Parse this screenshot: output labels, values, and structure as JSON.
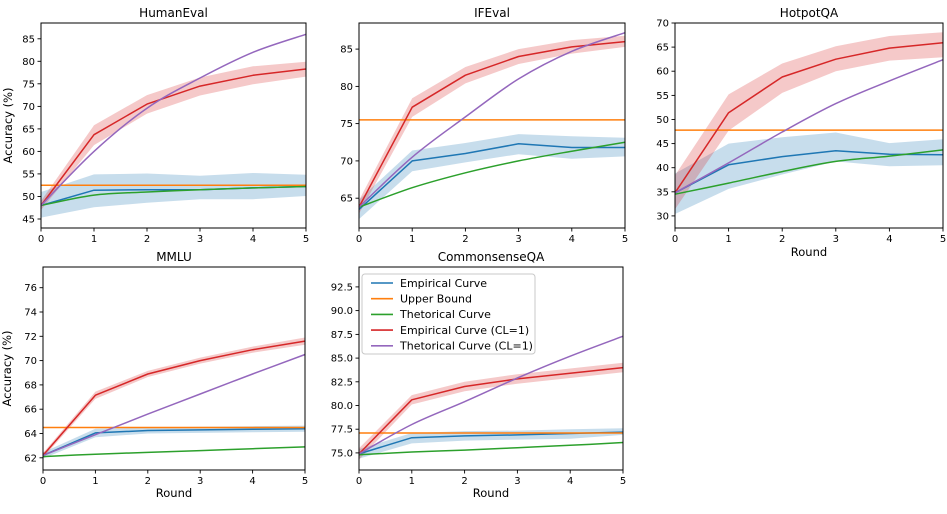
{
  "figure": {
    "background": "#ffffff",
    "palette": {
      "blue": "#1f77b4",
      "orange": "#ff7f0e",
      "green": "#2ca02c",
      "red": "#d62728",
      "purple": "#9467bd",
      "spine": "#000000",
      "legend_edge": "#c8c8c8"
    },
    "band_alpha": 0.25,
    "axis_labels": {
      "y": "Accuracy (%)",
      "x": "Round"
    }
  },
  "chart_data": [
    {
      "type": "line",
      "title": "HumanEval",
      "ylabel": "Accuracy (%)",
      "x": [
        0,
        1,
        2,
        3,
        4,
        5
      ],
      "xlim": [
        0,
        5
      ],
      "ylim": [
        43,
        88.5
      ],
      "xticks": [
        0,
        1,
        2,
        3,
        4,
        5
      ],
      "yticks": [
        45,
        50,
        55,
        60,
        65,
        70,
        75,
        80,
        85
      ],
      "ytick_decimals": 0,
      "legend": false,
      "series": [
        {
          "name": "Empirical Curve",
          "color": "blue",
          "smooth": false,
          "values": [
            48,
            51.4,
            51.5,
            51.5,
            51.9,
            52.2
          ],
          "band_lower": [
            45.3,
            47.6,
            48.6,
            49.4,
            49.4,
            50.1
          ],
          "band_upper": [
            51,
            54.9,
            55.1,
            54.6,
            55.2,
            54.8
          ]
        },
        {
          "name": "Upper Bound",
          "color": "orange",
          "constant": 52.5
        },
        {
          "name": "Thetorical Curve",
          "color": "green",
          "smooth": true,
          "values": [
            48,
            50.3,
            51,
            51.5,
            51.9,
            52.2
          ]
        },
        {
          "name": "Empirical Curve (CL=1)",
          "color": "red",
          "smooth": false,
          "values": [
            48,
            63.7,
            70.5,
            74.5,
            76.9,
            78.3
          ],
          "band_lower": [
            47,
            61.4,
            68.4,
            72.4,
            74.9,
            76.6
          ],
          "band_upper": [
            49,
            65.8,
            72.5,
            76.4,
            78.9,
            79.9
          ]
        },
        {
          "name": "Thetorical Curve (CL=1)",
          "color": "purple",
          "smooth": true,
          "values": [
            48,
            60,
            69.6,
            76.3,
            82,
            86
          ]
        }
      ]
    },
    {
      "type": "line",
      "title": "IFEval",
      "x": [
        0,
        1,
        2,
        3,
        4,
        5
      ],
      "xlim": [
        0,
        5
      ],
      "ylim": [
        61,
        88.5
      ],
      "xticks": [
        0,
        1,
        2,
        3,
        4,
        5
      ],
      "yticks": [
        65,
        70,
        75,
        80,
        85
      ],
      "ytick_decimals": 0,
      "legend": false,
      "series": [
        {
          "name": "Empirical Curve",
          "color": "blue",
          "smooth": false,
          "values": [
            63.5,
            70,
            71,
            72.3,
            71.8,
            71.8
          ],
          "band_lower": [
            62.2,
            68.6,
            69.8,
            70.9,
            70.3,
            70.6
          ],
          "band_upper": [
            64.8,
            71.4,
            72.4,
            73.6,
            73.3,
            73.1
          ]
        },
        {
          "name": "Upper Bound",
          "color": "orange",
          "constant": 75.5
        },
        {
          "name": "Thetorical Curve",
          "color": "green",
          "smooth": true,
          "values": [
            63.8,
            66.4,
            68.4,
            70,
            71.3,
            72.5
          ]
        },
        {
          "name": "Empirical Curve (CL=1)",
          "color": "red",
          "smooth": false,
          "values": [
            63.8,
            77.2,
            81.5,
            84,
            85.3,
            86
          ],
          "band_lower": [
            62.9,
            75.9,
            80.4,
            83,
            84.4,
            85.3
          ],
          "band_upper": [
            64.7,
            78.4,
            82.6,
            85,
            86.2,
            86.8
          ]
        },
        {
          "name": "Thetorical Curve (CL=1)",
          "color": "purple",
          "smooth": true,
          "values": [
            63.8,
            70.5,
            75.9,
            81,
            84.7,
            87.2
          ]
        }
      ]
    },
    {
      "type": "line",
      "title": "HotpotQA",
      "xlabel": "Round",
      "x": [
        0,
        1,
        2,
        3,
        4,
        5
      ],
      "xlim": [
        0,
        5
      ],
      "ylim": [
        27.5,
        70
      ],
      "xticks": [
        0,
        1,
        2,
        3,
        4,
        5
      ],
      "yticks": [
        30,
        35,
        40,
        45,
        50,
        55,
        60,
        65,
        70
      ],
      "ytick_decimals": 0,
      "legend": false,
      "series": [
        {
          "name": "Empirical Curve",
          "color": "blue",
          "smooth": false,
          "values": [
            34.8,
            40.6,
            42.3,
            43.5,
            42.8,
            42.7
          ],
          "band_lower": [
            30.4,
            35.6,
            38.6,
            41.3,
            40.3,
            40.5
          ],
          "band_upper": [
            38.8,
            45,
            46.3,
            47.3,
            45.1,
            45.9
          ]
        },
        {
          "name": "Upper Bound",
          "color": "orange",
          "constant": 47.8
        },
        {
          "name": "Thetorical Curve",
          "color": "green",
          "smooth": true,
          "values": [
            34.5,
            36.8,
            39.2,
            41.3,
            42.4,
            43.7
          ]
        },
        {
          "name": "Empirical Curve (CL=1)",
          "color": "red",
          "smooth": false,
          "values": [
            34.8,
            51.4,
            58.8,
            62.5,
            64.8,
            65.9
          ],
          "band_lower": [
            31.4,
            47.7,
            55.5,
            60,
            62.2,
            62.9
          ],
          "band_upper": [
            38.4,
            55.2,
            61.6,
            65.2,
            67.3,
            68.1
          ]
        },
        {
          "name": "Thetorical Curve (CL=1)",
          "color": "purple",
          "smooth": true,
          "values": [
            34.8,
            41,
            47.4,
            53.3,
            58,
            62.4
          ]
        }
      ]
    },
    {
      "type": "line",
      "title": "MMLU",
      "xlabel": "Round",
      "ylabel": "Accuracy (%)",
      "x": [
        0,
        1,
        2,
        3,
        4,
        5
      ],
      "xlim": [
        0,
        5
      ],
      "ylim": [
        61,
        77.7
      ],
      "xticks": [
        0,
        1,
        2,
        3,
        4,
        5
      ],
      "yticks": [
        62,
        64,
        66,
        68,
        70,
        72,
        74,
        76
      ],
      "ytick_decimals": 0,
      "legend": false,
      "series": [
        {
          "name": "Empirical Curve",
          "color": "blue",
          "smooth": false,
          "values": [
            62.2,
            64.05,
            64.25,
            64.3,
            64.35,
            64.4
          ],
          "band_lower": [
            61.95,
            63.7,
            64,
            64.05,
            64.1,
            64.15
          ],
          "band_upper": [
            62.45,
            64.4,
            64.5,
            64.55,
            64.6,
            64.65
          ]
        },
        {
          "name": "Upper Bound",
          "color": "orange",
          "constant": 64.5
        },
        {
          "name": "Thetorical Curve",
          "color": "green",
          "smooth": true,
          "values": [
            62.1,
            62.3,
            62.45,
            62.6,
            62.75,
            62.9
          ]
        },
        {
          "name": "Empirical Curve (CL=1)",
          "color": "red",
          "smooth": false,
          "values": [
            62.2,
            67.15,
            68.9,
            70,
            70.9,
            71.6
          ],
          "band_lower": [
            62,
            66.85,
            68.65,
            69.75,
            70.65,
            71.3
          ],
          "band_upper": [
            62.4,
            67.45,
            69.15,
            70.25,
            71.15,
            71.9
          ]
        },
        {
          "name": "Thetorical Curve (CL=1)",
          "color": "purple",
          "smooth": true,
          "values": [
            62.2,
            63.9,
            65.6,
            67.25,
            68.9,
            70.5
          ]
        }
      ]
    },
    {
      "type": "line",
      "title": "CommonsenseQA",
      "xlabel": "Round",
      "x": [
        0,
        1,
        2,
        3,
        4,
        5
      ],
      "xlim": [
        0,
        5
      ],
      "ylim": [
        73.2,
        94.6
      ],
      "xticks": [
        0,
        1,
        2,
        3,
        4,
        5
      ],
      "yticks": [
        75,
        77.5,
        80,
        82.5,
        85,
        87.5,
        90,
        92.5
      ],
      "ytick_decimals": 1,
      "legend": true,
      "legend_loc": "upper left",
      "series": [
        {
          "name": "Empirical Curve",
          "color": "blue",
          "smooth": false,
          "values": [
            74.9,
            76.6,
            76.8,
            76.9,
            77.05,
            77.2
          ],
          "band_lower": [
            74.4,
            76,
            76.3,
            76.4,
            76.5,
            76.9
          ],
          "band_upper": [
            75.4,
            77.1,
            77.3,
            77.35,
            77.5,
            77.6
          ]
        },
        {
          "name": "Upper Bound",
          "color": "orange",
          "constant": 77.1
        },
        {
          "name": "Thetorical Curve",
          "color": "green",
          "smooth": true,
          "values": [
            74.8,
            75.1,
            75.3,
            75.55,
            75.8,
            76.1
          ]
        },
        {
          "name": "Empirical Curve (CL=1)",
          "color": "red",
          "smooth": false,
          "values": [
            74.9,
            80.6,
            82,
            82.8,
            83.4,
            84
          ],
          "band_lower": [
            74.3,
            80.1,
            81.5,
            82.3,
            82.9,
            83.5
          ],
          "band_upper": [
            75.5,
            81.1,
            82.5,
            83.3,
            83.9,
            84.5
          ]
        },
        {
          "name": "Thetorical Curve (CL=1)",
          "color": "purple",
          "smooth": true,
          "values": [
            74.9,
            78,
            80.4,
            82.9,
            85.2,
            87.3
          ]
        }
      ]
    }
  ]
}
